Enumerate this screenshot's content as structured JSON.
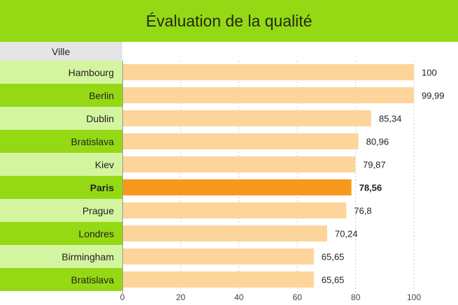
{
  "title": "Évaluation de la qualité",
  "column_header": "Ville",
  "colors": {
    "header_bg": "#95d915",
    "row_light": "#d4f5a0",
    "row_dark": "#95d915",
    "bar": "#fdd49a",
    "bar_highlight": "#f7981d",
    "grid": "#cccccc"
  },
  "chart_data": {
    "type": "bar",
    "orientation": "horizontal",
    "categories": [
      "Hambourg",
      "Berlin",
      "Dublin",
      "Bratislava",
      "Kiev",
      "Paris",
      "Prague",
      "Londres",
      "Birmingham",
      "Bratislava"
    ],
    "values": [
      100,
      99.99,
      85.34,
      80.96,
      79.87,
      78.56,
      76.8,
      70.24,
      65.65,
      65.65
    ],
    "value_labels": [
      "100",
      "99,99",
      "85,34",
      "80,96",
      "79,87",
      "78,56",
      "76,8",
      "70,24",
      "65,65",
      "65,65"
    ],
    "highlight": "Paris",
    "xlim": [
      0,
      100
    ],
    "x_ticks": [
      0,
      20,
      40,
      60,
      80,
      100
    ],
    "grid": true
  }
}
